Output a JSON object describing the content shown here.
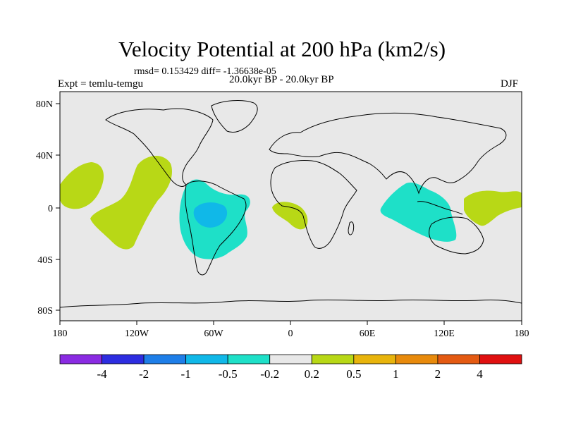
{
  "title": "Velocity Potential at 200 hPa (km2/s)",
  "stats": "rmsd= 0.153429 diff= -1.36638e-05",
  "period": "20.0kyr BP - 20.0kyr BP",
  "expt": "Expt = temlu-temgu",
  "season": "DJF",
  "lat_labels": [
    "80N",
    "40N",
    "0",
    "40S",
    "80S"
  ],
  "lon_labels": [
    "180",
    "120W",
    "60W",
    "0",
    "60E",
    "120E",
    "180"
  ],
  "colorbar": {
    "colors": [
      "#8a2be2",
      "#2d2de0",
      "#1e7ee8",
      "#10b8e8",
      "#1ee0c8",
      "#e8e8e8",
      "#b8d816",
      "#e8b40c",
      "#e88a0c",
      "#e45a12",
      "#e01010"
    ],
    "labels": [
      "-4",
      "-2",
      "-1",
      "-0.5",
      "-0.2",
      "0.2",
      "0.5",
      "1",
      "2",
      "4"
    ]
  },
  "colors": {
    "ocean": "#e8e8e8",
    "positive": "#b8d816",
    "negative": "#1ee0c8",
    "strong_negative": "#10b8e8"
  }
}
